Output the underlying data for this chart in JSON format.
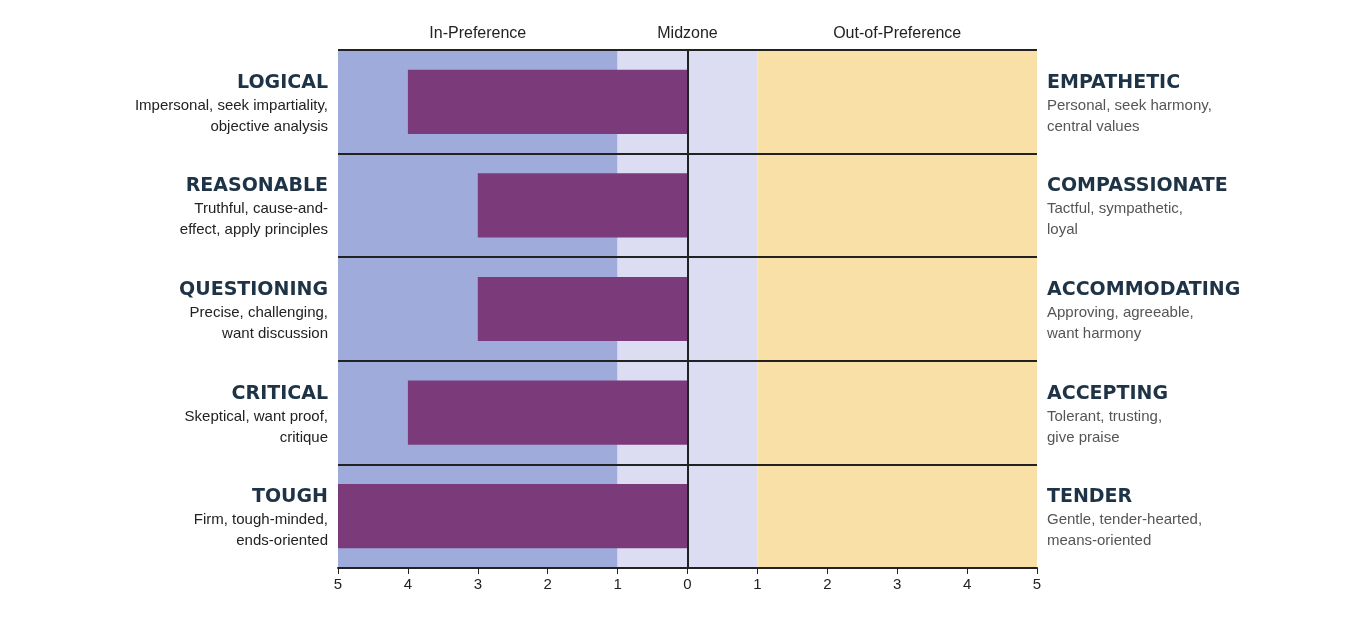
{
  "chart_data": {
    "type": "bar",
    "orientation": "horizontal",
    "categories": [
      "LOGICAL\nImpersonal, seek impartiality,\nobjective analysis",
      "REASONABLE\nTruthful, cause-and-\neffect, apply principles",
      "QUESTIONING\nPrecise, challenging,\nwant discussion",
      "CRITICAL\nSkeptical, want proof,\ncritique",
      "TOUGH\nFirm, tough-minded,\nends-oriented"
    ],
    "y2_categories": [
      "EMPATHETIC\nPersonal, seek harmony,\ncentral values",
      "COMPASSIONATE\nTactful, sympathetic,\nloyal",
      "ACCOMMODATING\nApproving, agreeable,\nwant harmony",
      "ACCEPTING\nTolerant, trusting,\ngive praise",
      "TENDER\nGentle, tender-hearted,\nmeans-oriented"
    ],
    "values": [
      -4,
      -3,
      -3,
      -4,
      -5
    ],
    "color": "#7b3b7a",
    "xlim": [
      -5,
      5
    ],
    "xticks": [
      {
        "value": -5,
        "label": "5"
      },
      {
        "value": -4,
        "label": "4"
      },
      {
        "value": -3,
        "label": "3"
      },
      {
        "value": -2,
        "label": "2"
      },
      {
        "value": -1,
        "label": "1"
      },
      0,
      1,
      2,
      3,
      4,
      5
    ],
    "bands": [
      {
        "axis": "x",
        "from": -5,
        "to": -1,
        "label": "In-Preference",
        "color": "#9eabdb"
      },
      {
        "axis": "x",
        "from": -1,
        "to": 1,
        "label": "Midzone",
        "color": "#dcdcf3"
      },
      {
        "axis": "x",
        "from": 1,
        "to": 5,
        "label": "Out-of-Preference",
        "color": "#f8e0a6"
      }
    ],
    "ref_lines": [
      {
        "axis": "x",
        "value": 0,
        "color": "#222222"
      }
    ],
    "grid": "y"
  }
}
